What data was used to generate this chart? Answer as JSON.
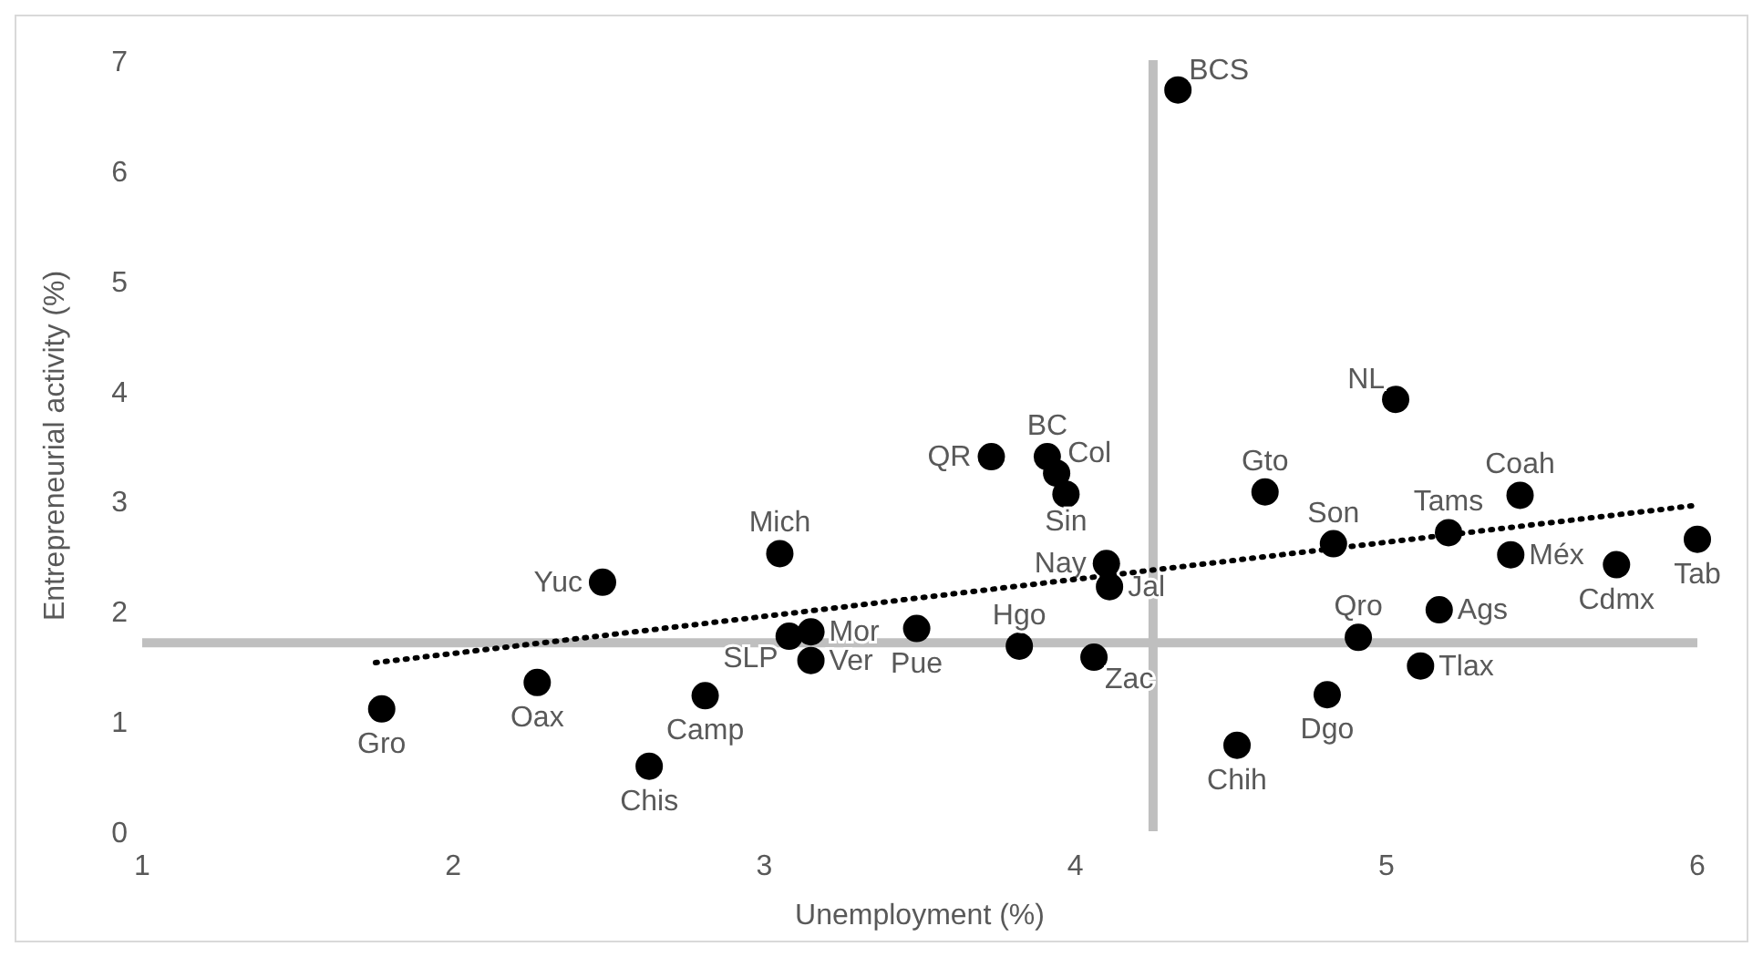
{
  "chart_data": {
    "type": "scatter",
    "xlabel": "Unemployment (%)",
    "ylabel": "Entrepreneurial activity (%)",
    "xlim": [
      1,
      6
    ],
    "ylim": [
      0,
      7
    ],
    "xticks": [
      1,
      2,
      3,
      4,
      5,
      6
    ],
    "yticks": [
      0,
      1,
      2,
      3,
      4,
      5,
      6,
      7
    ],
    "grid": false,
    "legend": false,
    "marker": "circle",
    "ref_lines": [
      {
        "axis": "x",
        "value": 4.25,
        "color": "#bfbfbf"
      },
      {
        "axis": "y",
        "value": 1.71,
        "color": "#bfbfbf"
      }
    ],
    "series": [
      {
        "name": "Gro",
        "color": "#000000",
        "x": [
          1.77
        ],
        "values": [
          1.11
        ]
      },
      {
        "name": "Oax",
        "color": "#000000",
        "x": [
          2.27
        ],
        "values": [
          1.35
        ]
      },
      {
        "name": "Yuc",
        "color": "#000000",
        "x": [
          2.48
        ],
        "values": [
          2.26
        ]
      },
      {
        "name": "Chis",
        "color": "#000000",
        "x": [
          2.63
        ],
        "values": [
          0.59
        ]
      },
      {
        "name": "Camp",
        "color": "#000000",
        "x": [
          2.81
        ],
        "values": [
          1.23
        ]
      },
      {
        "name": "Mich",
        "color": "#000000",
        "x": [
          3.05
        ],
        "values": [
          2.52
        ]
      },
      {
        "name": "SLP",
        "color": "#000000",
        "x": [
          3.08
        ],
        "values": [
          1.77
        ]
      },
      {
        "name": "Mor",
        "color": "#000000",
        "x": [
          3.15
        ],
        "values": [
          1.81
        ]
      },
      {
        "name": "Ver",
        "color": "#000000",
        "x": [
          3.15
        ],
        "values": [
          1.55
        ]
      },
      {
        "name": "Pue",
        "color": "#000000",
        "x": [
          3.49
        ],
        "values": [
          1.84
        ]
      },
      {
        "name": "Hgo",
        "color": "#000000",
        "x": [
          3.82
        ],
        "values": [
          1.68
        ]
      },
      {
        "name": "Zac",
        "color": "#000000",
        "x": [
          4.06
        ],
        "values": [
          1.58
        ]
      },
      {
        "name": "Nay",
        "color": "#000000",
        "x": [
          4.1
        ],
        "values": [
          2.43
        ]
      },
      {
        "name": "Jal",
        "color": "#000000",
        "x": [
          4.11
        ],
        "values": [
          2.22
        ]
      },
      {
        "name": "QR",
        "color": "#000000",
        "x": [
          3.73
        ],
        "values": [
          3.4
        ]
      },
      {
        "name": "BC",
        "color": "#000000",
        "x": [
          3.91
        ],
        "values": [
          3.4
        ]
      },
      {
        "name": "Col",
        "color": "#000000",
        "x": [
          3.94
        ],
        "values": [
          3.25
        ]
      },
      {
        "name": "Sin",
        "color": "#000000",
        "x": [
          3.97
        ],
        "values": [
          3.06
        ]
      },
      {
        "name": "BCS",
        "color": "#000000",
        "x": [
          4.33
        ],
        "values": [
          6.73
        ]
      },
      {
        "name": "Gto",
        "color": "#000000",
        "x": [
          4.61
        ],
        "values": [
          3.08
        ]
      },
      {
        "name": "Chih",
        "color": "#000000",
        "x": [
          4.52
        ],
        "values": [
          0.78
        ]
      },
      {
        "name": "Dgo",
        "color": "#000000",
        "x": [
          4.81
        ],
        "values": [
          1.24
        ]
      },
      {
        "name": "Son",
        "color": "#000000",
        "x": [
          4.83
        ],
        "values": [
          2.61
        ]
      },
      {
        "name": "Qro",
        "color": "#000000",
        "x": [
          4.91
        ],
        "values": [
          1.76
        ]
      },
      {
        "name": "NL",
        "color": "#000000",
        "x": [
          5.03
        ],
        "values": [
          3.92
        ]
      },
      {
        "name": "Tlax",
        "color": "#000000",
        "x": [
          5.11
        ],
        "values": [
          1.5
        ]
      },
      {
        "name": "Ags",
        "color": "#000000",
        "x": [
          5.17
        ],
        "values": [
          2.01
        ]
      },
      {
        "name": "Tams",
        "color": "#000000",
        "x": [
          5.2
        ],
        "values": [
          2.71
        ]
      },
      {
        "name": "Méx",
        "color": "#000000",
        "x": [
          5.4
        ],
        "values": [
          2.51
        ]
      },
      {
        "name": "Coah",
        "color": "#000000",
        "x": [
          5.43
        ],
        "values": [
          3.05
        ]
      },
      {
        "name": "Cdmx",
        "color": "#000000",
        "x": [
          5.74
        ],
        "values": [
          2.42
        ]
      },
      {
        "name": "Tab",
        "color": "#000000",
        "x": [
          6.0
        ],
        "values": [
          2.65
        ]
      },
      {
        "type": "line",
        "color": "#000000",
        "line_style": "dotted",
        "marker": "none",
        "x": [
          1.75,
          6
        ],
        "values": [
          1.53,
          2.96
        ]
      }
    ]
  }
}
